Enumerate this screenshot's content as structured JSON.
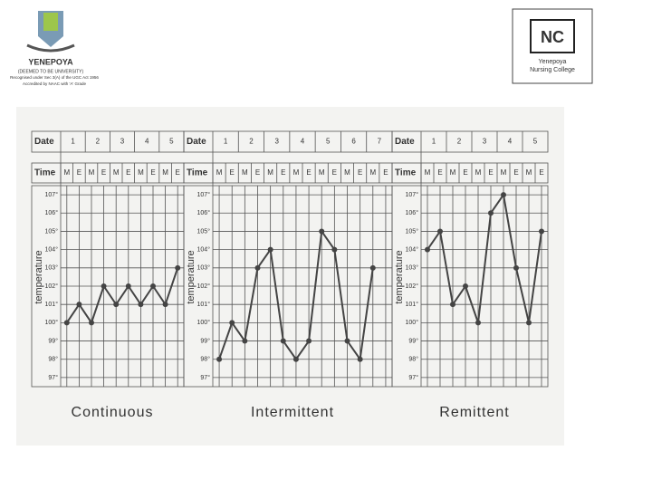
{
  "header": {
    "left_logo": [
      "YENEPOYA",
      "(DEEMED TO BE UNIVERSITY)",
      "Recognised under Sec 3(A) of the UGC Act 1956",
      "Accredited by NAAC with 'A' Grade"
    ],
    "right_logo": [
      "Yenepoya",
      "Nursing College"
    ]
  },
  "chart_data": [
    {
      "type": "line",
      "title": "Continuous",
      "ylabel": "temperature",
      "date_label": "Date",
      "time_label": "Time",
      "dates": [
        "1",
        "2",
        "3",
        "4",
        "5"
      ],
      "categories": [
        "M",
        "E",
        "M",
        "E",
        "M",
        "E",
        "M",
        "E",
        "M",
        "E"
      ],
      "series": [
        {
          "color": "#444",
          "values": [
            100,
            101,
            100,
            102,
            101,
            102,
            101,
            102,
            101,
            103
          ]
        }
      ],
      "ylim": [
        96.5,
        107.5
      ],
      "yticks": [
        {
          "value": 97,
          "label": "97°"
        },
        {
          "value": 98,
          "label": "98°"
        },
        {
          "value": 99,
          "label": "99°"
        },
        {
          "value": 100,
          "label": "100°"
        },
        {
          "value": 101,
          "label": "101°"
        },
        {
          "value": 102,
          "label": "102°"
        },
        {
          "value": 103,
          "label": "103°"
        },
        {
          "value": 104,
          "label": "104°"
        },
        {
          "value": 105,
          "label": "105°"
        },
        {
          "value": 106,
          "label": "106°"
        },
        {
          "value": 107,
          "label": "107°"
        }
      ]
    },
    {
      "type": "line",
      "title": "Intermittent",
      "ylabel": "temperature",
      "date_label": "Date",
      "time_label": "Time",
      "dates": [
        "1",
        "2",
        "3",
        "4",
        "5",
        "6",
        "7"
      ],
      "categories": [
        "M",
        "E",
        "M",
        "E",
        "M",
        "E",
        "M",
        "E",
        "M",
        "E",
        "M",
        "E",
        "M",
        "E"
      ],
      "series": [
        {
          "color": "#444",
          "values": [
            98,
            100,
            99,
            103,
            104,
            99,
            98,
            99,
            105,
            104,
            99,
            98,
            103,
            null
          ]
        }
      ],
      "ylim": [
        96.5,
        107.5
      ],
      "yticks": [
        {
          "value": 97,
          "label": "97°"
        },
        {
          "value": 98,
          "label": "98°"
        },
        {
          "value": 99,
          "label": "99°"
        },
        {
          "value": 100,
          "label": "100°"
        },
        {
          "value": 101,
          "label": "101°"
        },
        {
          "value": 102,
          "label": "102°"
        },
        {
          "value": 103,
          "label": "103°"
        },
        {
          "value": 104,
          "label": "104°"
        },
        {
          "value": 105,
          "label": "105°"
        },
        {
          "value": 106,
          "label": "106°"
        },
        {
          "value": 107,
          "label": "107°"
        }
      ]
    },
    {
      "type": "line",
      "title": "Remittent",
      "ylabel": "temperature",
      "date_label": "Date",
      "time_label": "Time",
      "dates": [
        "1",
        "2",
        "3",
        "4",
        "5"
      ],
      "categories": [
        "M",
        "E",
        "M",
        "E",
        "M",
        "E",
        "M",
        "E",
        "M",
        "E"
      ],
      "series": [
        {
          "color": "#444",
          "values": [
            104,
            105,
            101,
            102,
            100,
            106,
            107,
            103,
            100,
            105
          ]
        }
      ],
      "ylim": [
        96.5,
        107.5
      ],
      "yticks": [
        {
          "value": 97,
          "label": "97°"
        },
        {
          "value": 98,
          "label": "98°"
        },
        {
          "value": 99,
          "label": "99°"
        },
        {
          "value": 100,
          "label": "100°"
        },
        {
          "value": 101,
          "label": "101°"
        },
        {
          "value": 102,
          "label": "102°"
        },
        {
          "value": 103,
          "label": "103°"
        },
        {
          "value": 104,
          "label": "104°"
        },
        {
          "value": 105,
          "label": "105°"
        },
        {
          "value": 106,
          "label": "106°"
        },
        {
          "value": 107,
          "label": "107°"
        }
      ]
    }
  ]
}
